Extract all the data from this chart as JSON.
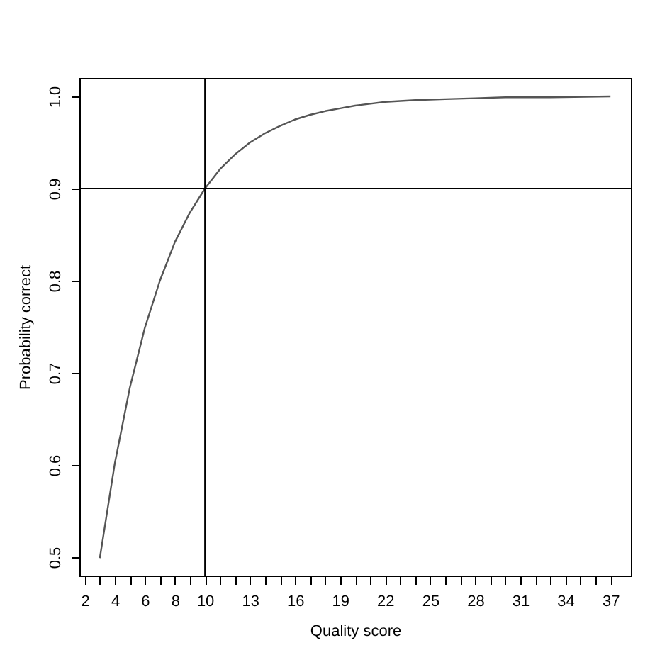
{
  "chart_data": {
    "type": "line",
    "xlabel": "Quality score",
    "ylabel": "Probability correct",
    "x": [
      3,
      4,
      5,
      6,
      7,
      8,
      9,
      10,
      11,
      12,
      13,
      14,
      15,
      16,
      17,
      18,
      19,
      20,
      22,
      24,
      26,
      28,
      30,
      33,
      37
    ],
    "series": [
      {
        "color": "#555555",
        "values": [
          0.499,
          0.602,
          0.684,
          0.749,
          0.8,
          0.842,
          0.874,
          0.9,
          0.921,
          0.937,
          0.95,
          0.96,
          0.968,
          0.975,
          0.98,
          0.984,
          0.987,
          0.99,
          0.994,
          0.996,
          0.997,
          0.998,
          0.999,
          0.999,
          1
        ]
      }
    ],
    "xlim": [
      1.64,
      38.36
    ],
    "ylim": [
      0.48,
      1.02
    ],
    "xticks": [
      2,
      {
        "value": 3,
        "label": null
      },
      4,
      {
        "value": 5,
        "label": null
      },
      6,
      {
        "value": 7,
        "label": null
      },
      8,
      {
        "value": 9,
        "label": null
      },
      10,
      {
        "value": 11,
        "label": null
      },
      {
        "value": 12,
        "label": null
      },
      13,
      {
        "value": 14,
        "label": null
      },
      {
        "value": 15,
        "label": null
      },
      16,
      {
        "value": 17,
        "label": null
      },
      {
        "value": 18,
        "label": null
      },
      19,
      {
        "value": 20,
        "label": null
      },
      {
        "value": 21,
        "label": null
      },
      22,
      {
        "value": 23,
        "label": null
      },
      {
        "value": 24,
        "label": null
      },
      25,
      {
        "value": 26,
        "label": null
      },
      {
        "value": 27,
        "label": null
      },
      28,
      {
        "value": 29,
        "label": null
      },
      {
        "value": 30,
        "label": null
      },
      31,
      {
        "value": 32,
        "label": null
      },
      {
        "value": 33,
        "label": null
      },
      34,
      {
        "value": 35,
        "label": null
      },
      {
        "value": 36,
        "label": null
      },
      37
    ],
    "yticks": [
      0.5,
      0.6,
      0.7,
      0.8,
      0.9,
      {
        "value": 1,
        "label": "1.0"
      }
    ],
    "ref_lines": [
      {
        "axis": "x",
        "value": 10
      },
      {
        "axis": "y",
        "value": 0.9
      }
    ],
    "grid": false,
    "marker": "none",
    "line_style": "solid"
  }
}
